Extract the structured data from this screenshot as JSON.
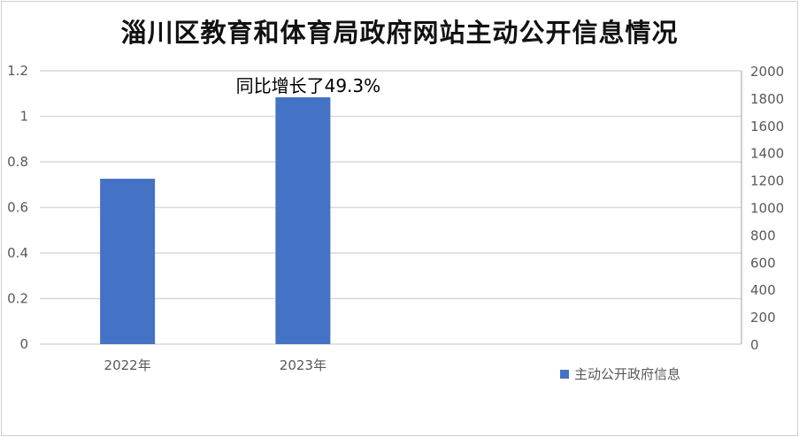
{
  "chart_data": {
    "type": "bar",
    "title": "淄川区教育和体育局政府网站主动公开信息情况",
    "categories": [
      "2022年",
      "2023年",
      "",
      ""
    ],
    "series": [
      {
        "name": "主动公开政府信息",
        "values": [
          1210,
          1806,
          null,
          null
        ],
        "axis": "right",
        "color": "#4472C4"
      }
    ],
    "left_axis": {
      "ylim": [
        0,
        1.2
      ],
      "ticks": [
        "0",
        "0.2",
        "0.4",
        "0.6",
        "0.8",
        "1",
        "1.2"
      ]
    },
    "right_axis": {
      "ylim": [
        0,
        2000
      ],
      "ticks": [
        "0",
        "200",
        "400",
        "600",
        "800",
        "1000",
        "1200",
        "1400",
        "1600",
        "1800",
        "2000"
      ]
    },
    "annotation": "同比增长了49.3%",
    "grid": true,
    "legend_position": "bottom-right"
  }
}
